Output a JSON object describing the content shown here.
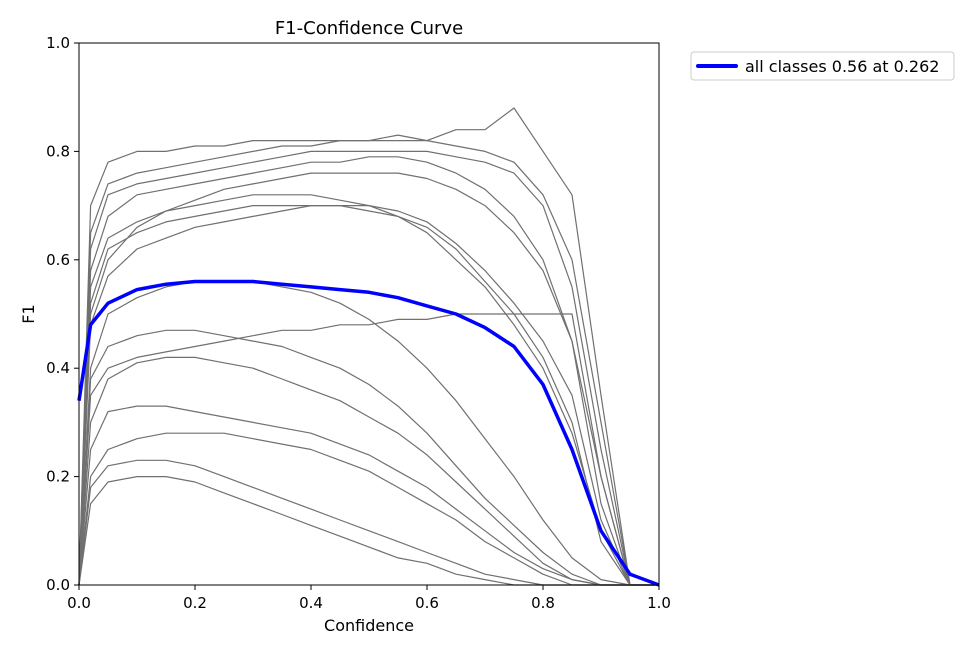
{
  "chart_data": {
    "type": "line",
    "title": "F1-Confidence Curve",
    "xlabel": "Confidence",
    "ylabel": "F1",
    "xlim": [
      0,
      1
    ],
    "ylim": [
      0,
      1
    ],
    "xticks": [
      "0.0",
      "0.2",
      "0.4",
      "0.6",
      "0.8",
      "1.0"
    ],
    "yticks": [
      "0.0",
      "0.2",
      "0.4",
      "0.6",
      "0.8",
      "1.0"
    ],
    "grid": false,
    "legend_position": "outside-top-right",
    "colors": {
      "class_series": "#707070",
      "all_classes": "#0000ff"
    },
    "x": [
      0.0,
      0.02,
      0.05,
      0.1,
      0.15,
      0.2,
      0.25,
      0.3,
      0.35,
      0.4,
      0.45,
      0.5,
      0.55,
      0.6,
      0.65,
      0.7,
      0.75,
      0.8,
      0.85,
      0.9,
      0.95,
      1.0
    ],
    "series": [
      {
        "values": [
          0.0,
          0.7,
          0.78,
          0.8,
          0.8,
          0.81,
          0.81,
          0.82,
          0.82,
          0.82,
          0.82,
          0.82,
          0.82,
          0.82,
          0.81,
          0.8,
          0.78,
          0.72,
          0.6,
          0.3,
          0.0,
          0.0
        ]
      },
      {
        "values": [
          0.0,
          0.65,
          0.74,
          0.76,
          0.77,
          0.78,
          0.79,
          0.8,
          0.81,
          0.81,
          0.82,
          0.82,
          0.83,
          0.82,
          0.84,
          0.84,
          0.88,
          0.8,
          0.72,
          0.35,
          0.0,
          0.0
        ]
      },
      {
        "values": [
          0.0,
          0.62,
          0.72,
          0.74,
          0.75,
          0.76,
          0.77,
          0.78,
          0.79,
          0.8,
          0.8,
          0.8,
          0.8,
          0.8,
          0.79,
          0.78,
          0.76,
          0.7,
          0.55,
          0.25,
          0.0,
          0.0
        ]
      },
      {
        "values": [
          0.0,
          0.58,
          0.68,
          0.72,
          0.73,
          0.74,
          0.75,
          0.76,
          0.77,
          0.78,
          0.78,
          0.79,
          0.79,
          0.78,
          0.76,
          0.73,
          0.68,
          0.6,
          0.45,
          0.15,
          0.0,
          0.0
        ]
      },
      {
        "values": [
          0.0,
          0.55,
          0.64,
          0.67,
          0.69,
          0.7,
          0.71,
          0.72,
          0.72,
          0.72,
          0.71,
          0.7,
          0.68,
          0.65,
          0.6,
          0.55,
          0.48,
          0.4,
          0.28,
          0.1,
          0.0,
          0.0
        ]
      },
      {
        "values": [
          0.0,
          0.52,
          0.62,
          0.65,
          0.67,
          0.68,
          0.69,
          0.7,
          0.7,
          0.7,
          0.7,
          0.69,
          0.68,
          0.66,
          0.62,
          0.56,
          0.5,
          0.42,
          0.3,
          0.08,
          0.0,
          0.0
        ]
      },
      {
        "values": [
          0.0,
          0.4,
          0.5,
          0.53,
          0.55,
          0.56,
          0.56,
          0.56,
          0.55,
          0.54,
          0.52,
          0.49,
          0.45,
          0.4,
          0.34,
          0.27,
          0.2,
          0.12,
          0.05,
          0.01,
          0.0,
          0.0
        ]
      },
      {
        "values": [
          0.0,
          0.38,
          0.44,
          0.46,
          0.47,
          0.47,
          0.46,
          0.45,
          0.44,
          0.42,
          0.4,
          0.37,
          0.33,
          0.28,
          0.22,
          0.16,
          0.11,
          0.06,
          0.02,
          0.0,
          0.0,
          0.0
        ]
      },
      {
        "values": [
          0.0,
          0.3,
          0.38,
          0.41,
          0.42,
          0.42,
          0.41,
          0.4,
          0.38,
          0.36,
          0.34,
          0.31,
          0.28,
          0.24,
          0.19,
          0.14,
          0.09,
          0.04,
          0.01,
          0.0,
          0.0,
          0.0
        ]
      },
      {
        "values": [
          0.0,
          0.25,
          0.32,
          0.33,
          0.33,
          0.32,
          0.31,
          0.3,
          0.29,
          0.28,
          0.26,
          0.24,
          0.21,
          0.18,
          0.14,
          0.1,
          0.06,
          0.03,
          0.01,
          0.0,
          0.0,
          0.0
        ]
      },
      {
        "values": [
          0.0,
          0.2,
          0.25,
          0.27,
          0.28,
          0.28,
          0.28,
          0.27,
          0.26,
          0.25,
          0.23,
          0.21,
          0.18,
          0.15,
          0.12,
          0.08,
          0.05,
          0.02,
          0.0,
          0.0,
          0.0,
          0.0
        ]
      },
      {
        "values": [
          0.0,
          0.18,
          0.22,
          0.23,
          0.23,
          0.22,
          0.2,
          0.18,
          0.16,
          0.14,
          0.12,
          0.1,
          0.08,
          0.06,
          0.04,
          0.02,
          0.01,
          0.0,
          0.0,
          0.0,
          0.0,
          0.0
        ]
      },
      {
        "values": [
          0.0,
          0.15,
          0.19,
          0.2,
          0.2,
          0.19,
          0.17,
          0.15,
          0.13,
          0.11,
          0.09,
          0.07,
          0.05,
          0.04,
          0.02,
          0.01,
          0.0,
          0.0,
          0.0,
          0.0,
          0.0,
          0.0
        ]
      },
      {
        "values": [
          0.0,
          0.5,
          0.6,
          0.66,
          0.69,
          0.71,
          0.73,
          0.74,
          0.75,
          0.76,
          0.76,
          0.76,
          0.76,
          0.75,
          0.73,
          0.7,
          0.65,
          0.58,
          0.45,
          0.2,
          0.0,
          0.0
        ]
      },
      {
        "values": [
          0.0,
          0.48,
          0.57,
          0.62,
          0.64,
          0.66,
          0.67,
          0.68,
          0.69,
          0.7,
          0.7,
          0.7,
          0.69,
          0.67,
          0.63,
          0.58,
          0.52,
          0.45,
          0.35,
          0.12,
          0.0,
          0.0
        ]
      },
      {
        "values": [
          0.0,
          0.35,
          0.4,
          0.42,
          0.43,
          0.44,
          0.45,
          0.46,
          0.47,
          0.47,
          0.48,
          0.48,
          0.49,
          0.49,
          0.5,
          0.5,
          0.5,
          0.5,
          0.5,
          0.2,
          0.0,
          0.0
        ]
      },
      {
        "name": "all classes 0.56 at 0.262",
        "highlight": true,
        "values": [
          0.34,
          0.48,
          0.52,
          0.545,
          0.555,
          0.56,
          0.56,
          0.56,
          0.555,
          0.55,
          0.545,
          0.54,
          0.53,
          0.515,
          0.5,
          0.475,
          0.44,
          0.37,
          0.25,
          0.1,
          0.02,
          0.0
        ]
      }
    ]
  }
}
